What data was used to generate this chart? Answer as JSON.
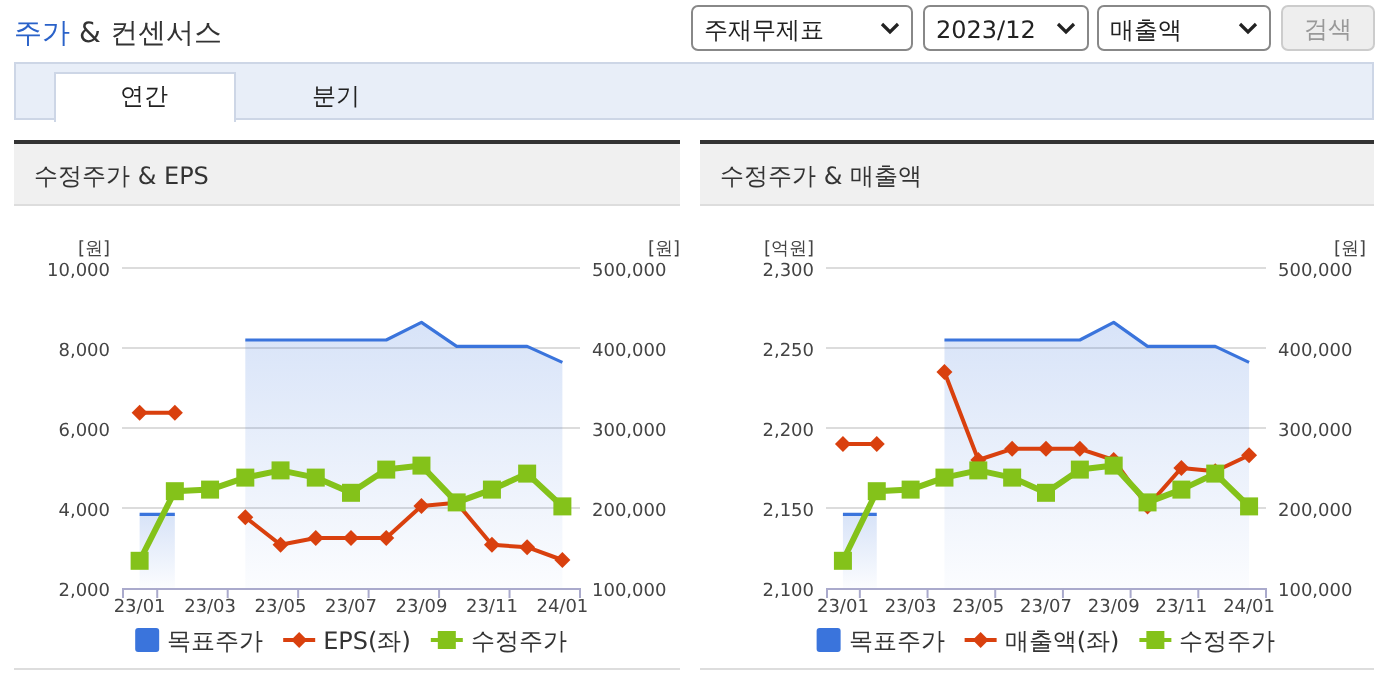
{
  "chart_data": [
    {
      "type": "line",
      "title": "수정주가 & EPS",
      "ylabel": "[원]",
      "y2label": "[원]",
      "annotations": [
        "주가 & 컨센서스",
        "주재무제표",
        "2023/12",
        "매출액",
        "검색",
        "연간",
        "분기"
      ],
      "categories": [
        "23/01",
        null,
        "23/03",
        null,
        "23/05",
        null,
        "23/07",
        null,
        "23/09",
        null,
        "23/11",
        null,
        "24/01"
      ],
      "ylim": [
        2000,
        10000
      ],
      "yticks": [
        {
          "value": 2000,
          "label": "2,000"
        },
        {
          "value": 4000,
          "label": "4,000"
        },
        {
          "value": 6000,
          "label": "6,000"
        },
        {
          "value": 8000,
          "label": "8,000"
        },
        {
          "value": 10000,
          "label": "10,000"
        }
      ],
      "y2lim": [
        100000,
        500000
      ],
      "y2ticks": [
        {
          "value": 100000,
          "label": "100,000"
        },
        {
          "value": 200000,
          "label": "200,000"
        },
        {
          "value": 300000,
          "label": "300,000"
        },
        {
          "value": 400000,
          "label": "400,000"
        },
        {
          "value": 500000,
          "label": "500,000"
        }
      ],
      "grid": "y",
      "legend": "bottom",
      "series": [
        {
          "name": "목표주가",
          "type": "area",
          "axis": "y2",
          "color": "#3a74dc",
          "marker": "none",
          "values": [
            192000,
            192000,
            null,
            410000,
            410000,
            410000,
            410000,
            410000,
            432000,
            402000,
            402000,
            402000,
            382000
          ]
        },
        {
          "name": "EPS(좌)",
          "type": "line",
          "color": "#d9400e",
          "marker": "diamond",
          "values": [
            6380,
            6380,
            null,
            3770,
            3080,
            3250,
            3250,
            3250,
            4050,
            4130,
            3080,
            3020,
            2700
          ]
        },
        {
          "name": "수정주가",
          "type": "line",
          "axis": "y2",
          "color": "#84c21a",
          "marker": "square",
          "values": [
            134000,
            221000,
            223000,
            238000,
            247000,
            238000,
            219000,
            248000,
            253000,
            207000,
            223000,
            243000,
            202000
          ]
        }
      ]
    },
    {
      "type": "line",
      "title": "수정주가 & 매출액",
      "ylabel": "[억원]",
      "y2label": "[원]",
      "categories": [
        "23/01",
        null,
        "23/03",
        null,
        "23/05",
        null,
        "23/07",
        null,
        "23/09",
        null,
        "23/11",
        null,
        "24/01"
      ],
      "ylim": [
        2100,
        2300
      ],
      "yticks": [
        {
          "value": 2100,
          "label": "2,100"
        },
        {
          "value": 2150,
          "label": "2,150"
        },
        {
          "value": 2200,
          "label": "2,200"
        },
        {
          "value": 2250,
          "label": "2,250"
        },
        {
          "value": 2300,
          "label": "2,300"
        }
      ],
      "y2lim": [
        100000,
        500000
      ],
      "y2ticks": [
        {
          "value": 100000,
          "label": "100,000"
        },
        {
          "value": 200000,
          "label": "200,000"
        },
        {
          "value": 300000,
          "label": "300,000"
        },
        {
          "value": 400000,
          "label": "400,000"
        },
        {
          "value": 500000,
          "label": "500,000"
        }
      ],
      "grid": "y",
      "legend": "bottom",
      "series": [
        {
          "name": "목표주가",
          "type": "area",
          "axis": "y2",
          "color": "#3a74dc",
          "marker": "none",
          "values": [
            192000,
            192000,
            null,
            410000,
            410000,
            410000,
            410000,
            410000,
            432000,
            402000,
            402000,
            402000,
            382000
          ]
        },
        {
          "name": "매출액(좌)",
          "type": "line",
          "color": "#d9400e",
          "marker": "diamond",
          "values": [
            2190,
            2190,
            null,
            2235,
            2180,
            2187,
            2187,
            2187,
            2180,
            2151,
            2175,
            2173,
            2183
          ]
        },
        {
          "name": "수정주가",
          "type": "line",
          "axis": "y2",
          "color": "#84c21a",
          "marker": "square",
          "values": [
            134000,
            221000,
            223000,
            238000,
            247000,
            238000,
            219000,
            248000,
            253000,
            207000,
            223000,
            243000,
            202000
          ]
        }
      ]
    }
  ]
}
